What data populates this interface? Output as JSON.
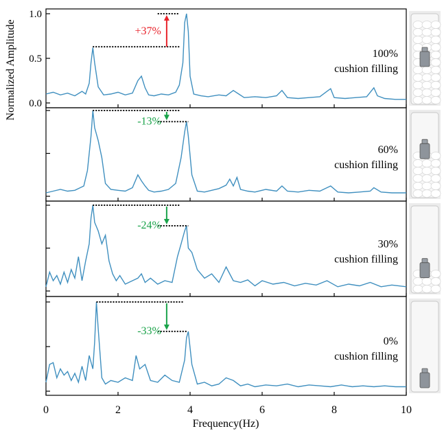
{
  "figure": {
    "ylabel": "Normalized Amplitude",
    "xlabel": "Frequency(Hz)"
  },
  "colors": {
    "line": "#3f8fbf",
    "increase": "#e8222a",
    "decrease": "#1aa34a",
    "axis": "#000000"
  },
  "chart_data": [
    {
      "type": "line",
      "label_value": "100%",
      "label_text": "cushion filling",
      "xlim": [
        0,
        10
      ],
      "ylim": [
        0,
        1
      ],
      "yticks": [
        "0.0",
        "0.5",
        "1.0"
      ],
      "annotation": {
        "text": "+37%",
        "direction": "up",
        "from": 0.63,
        "to": 1.0,
        "from_x": [
          1.3,
          3.7
        ],
        "to_x": [
          3.1,
          3.7
        ]
      },
      "x": [
        0,
        0.2,
        0.4,
        0.6,
        0.8,
        1.0,
        1.1,
        1.2,
        1.25,
        1.3,
        1.35,
        1.45,
        1.6,
        1.8,
        2.0,
        2.2,
        2.4,
        2.55,
        2.65,
        2.75,
        2.85,
        3.0,
        3.2,
        3.4,
        3.6,
        3.7,
        3.8,
        3.85,
        3.9,
        3.95,
        4.0,
        4.1,
        4.3,
        4.5,
        4.8,
        5.0,
        5.2,
        5.35,
        5.5,
        5.8,
        6.1,
        6.4,
        6.55,
        6.7,
        7.0,
        7.3,
        7.6,
        7.8,
        7.9,
        8.0,
        8.3,
        8.6,
        8.9,
        9.1,
        9.2,
        9.4,
        9.7,
        10.0
      ],
      "y": [
        0.1,
        0.12,
        0.09,
        0.11,
        0.08,
        0.13,
        0.1,
        0.22,
        0.45,
        0.62,
        0.45,
        0.18,
        0.09,
        0.1,
        0.12,
        0.09,
        0.11,
        0.25,
        0.3,
        0.17,
        0.09,
        0.08,
        0.1,
        0.09,
        0.12,
        0.2,
        0.45,
        0.9,
        1.0,
        0.8,
        0.3,
        0.1,
        0.08,
        0.07,
        0.09,
        0.08,
        0.14,
        0.1,
        0.06,
        0.07,
        0.06,
        0.08,
        0.14,
        0.06,
        0.05,
        0.06,
        0.07,
        0.13,
        0.16,
        0.06,
        0.05,
        0.06,
        0.07,
        0.17,
        0.08,
        0.05,
        0.04,
        0.04
      ]
    },
    {
      "type": "line",
      "label_value": "60%",
      "label_text": "cushion filling",
      "xlim": [
        0,
        10
      ],
      "ylim": [
        0,
        1
      ],
      "annotation": {
        "text": "-13%",
        "direction": "down",
        "from": 1.0,
        "to": 0.87,
        "from_x": [
          1.3,
          3.7
        ],
        "to_x": [
          3.1,
          3.95
        ]
      },
      "x": [
        0,
        0.2,
        0.4,
        0.6,
        0.8,
        0.95,
        1.05,
        1.15,
        1.25,
        1.3,
        1.35,
        1.45,
        1.55,
        1.65,
        1.8,
        2.0,
        2.2,
        2.4,
        2.55,
        2.65,
        2.75,
        2.85,
        3.0,
        3.2,
        3.4,
        3.6,
        3.75,
        3.85,
        3.9,
        3.95,
        4.05,
        4.2,
        4.4,
        4.6,
        4.8,
        5.0,
        5.1,
        5.2,
        5.3,
        5.4,
        5.6,
        5.8,
        6.1,
        6.4,
        6.55,
        6.7,
        7.0,
        7.3,
        7.6,
        7.8,
        7.9,
        8.1,
        8.4,
        8.7,
        9.0,
        9.1,
        9.3,
        9.6,
        10.0
      ],
      "y": [
        0.04,
        0.06,
        0.08,
        0.06,
        0.07,
        0.1,
        0.12,
        0.3,
        0.7,
        1.0,
        0.8,
        0.65,
        0.45,
        0.15,
        0.08,
        0.07,
        0.06,
        0.1,
        0.25,
        0.18,
        0.12,
        0.07,
        0.05,
        0.06,
        0.08,
        0.15,
        0.45,
        0.75,
        0.87,
        0.7,
        0.25,
        0.06,
        0.05,
        0.07,
        0.09,
        0.13,
        0.2,
        0.12,
        0.22,
        0.08,
        0.06,
        0.05,
        0.08,
        0.06,
        0.12,
        0.06,
        0.05,
        0.07,
        0.06,
        0.1,
        0.12,
        0.05,
        0.04,
        0.05,
        0.06,
        0.1,
        0.05,
        0.04,
        0.04
      ]
    },
    {
      "type": "line",
      "label_value": "30%",
      "label_text": "cushion filling",
      "xlim": [
        0,
        10
      ],
      "ylim": [
        0,
        1
      ],
      "annotation": {
        "text": "-24%",
        "direction": "down",
        "from": 1.0,
        "to": 0.76,
        "from_x": [
          1.3,
          3.7
        ],
        "to_x": [
          3.1,
          3.95
        ]
      },
      "x": [
        0,
        0.1,
        0.2,
        0.3,
        0.4,
        0.5,
        0.6,
        0.7,
        0.8,
        0.9,
        1.0,
        1.1,
        1.2,
        1.25,
        1.3,
        1.35,
        1.45,
        1.55,
        1.65,
        1.75,
        1.85,
        1.95,
        2.05,
        2.2,
        2.4,
        2.55,
        2.65,
        2.75,
        2.9,
        3.1,
        3.3,
        3.5,
        3.65,
        3.75,
        3.85,
        3.9,
        3.95,
        4.05,
        4.2,
        4.4,
        4.6,
        4.8,
        5.0,
        5.2,
        5.4,
        5.6,
        5.8,
        6.0,
        6.3,
        6.6,
        6.9,
        7.2,
        7.5,
        7.8,
        8.1,
        8.4,
        8.7,
        9.0,
        9.3,
        9.6,
        10.0
      ],
      "y": [
        0.05,
        0.22,
        0.12,
        0.18,
        0.08,
        0.22,
        0.1,
        0.25,
        0.15,
        0.4,
        0.12,
        0.35,
        0.55,
        0.85,
        1.0,
        0.8,
        0.7,
        0.55,
        0.65,
        0.35,
        0.2,
        0.12,
        0.18,
        0.08,
        0.12,
        0.15,
        0.2,
        0.1,
        0.15,
        0.08,
        0.12,
        0.1,
        0.4,
        0.55,
        0.7,
        0.76,
        0.5,
        0.45,
        0.25,
        0.15,
        0.2,
        0.1,
        0.28,
        0.12,
        0.1,
        0.13,
        0.06,
        0.12,
        0.08,
        0.1,
        0.06,
        0.09,
        0.07,
        0.12,
        0.05,
        0.08,
        0.06,
        0.1,
        0.05,
        0.07,
        0.05
      ]
    },
    {
      "type": "line",
      "label_value": "0%",
      "label_text": "cushion filling",
      "xlim": [
        0,
        10
      ],
      "ylim": [
        0,
        1
      ],
      "annotation": {
        "text": "-33%",
        "direction": "down",
        "from": 1.0,
        "to": 0.67,
        "from_x": [
          1.4,
          3.8
        ],
        "to_x": [
          3.1,
          3.9
        ]
      },
      "x": [
        0,
        0.1,
        0.2,
        0.3,
        0.4,
        0.5,
        0.6,
        0.7,
        0.8,
        0.9,
        1.0,
        1.1,
        1.2,
        1.3,
        1.35,
        1.4,
        1.45,
        1.55,
        1.65,
        1.8,
        2.0,
        2.2,
        2.4,
        2.5,
        2.6,
        2.75,
        2.9,
        3.1,
        3.3,
        3.5,
        3.7,
        3.85,
        3.9,
        3.95,
        4.05,
        4.2,
        4.4,
        4.6,
        4.8,
        5.0,
        5.2,
        5.4,
        5.6,
        5.8,
        6.1,
        6.4,
        6.7,
        7.0,
        7.3,
        7.6,
        7.9,
        8.2,
        8.5,
        8.8,
        9.1,
        9.4,
        9.7,
        10.0
      ],
      "y": [
        0.1,
        0.3,
        0.32,
        0.15,
        0.25,
        0.18,
        0.22,
        0.12,
        0.2,
        0.1,
        0.28,
        0.12,
        0.4,
        0.25,
        0.55,
        1.0,
        0.7,
        0.15,
        0.08,
        0.12,
        0.1,
        0.15,
        0.12,
        0.4,
        0.25,
        0.3,
        0.12,
        0.1,
        0.18,
        0.12,
        0.1,
        0.35,
        0.6,
        0.67,
        0.3,
        0.08,
        0.1,
        0.06,
        0.08,
        0.15,
        0.12,
        0.06,
        0.08,
        0.05,
        0.07,
        0.06,
        0.08,
        0.05,
        0.07,
        0.06,
        0.05,
        0.07,
        0.05,
        0.06,
        0.05,
        0.06,
        0.05,
        0.05
      ]
    }
  ],
  "xaxis": {
    "ticks": [
      0,
      2,
      4,
      6,
      8,
      10
    ]
  }
}
